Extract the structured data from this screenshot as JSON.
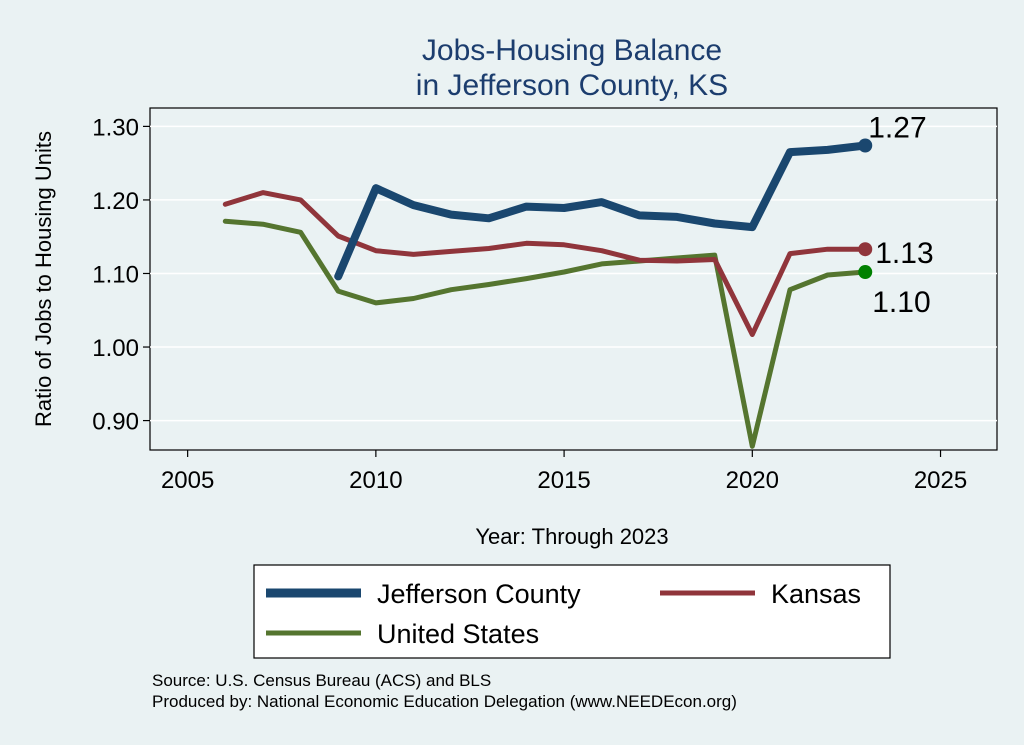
{
  "chart_data": {
    "type": "line",
    "title": [
      "Jobs-Housing Balance",
      "in Jefferson County, KS"
    ],
    "xlabel": "Year: Through 2023",
    "ylabel": "Ratio of Jobs to Housing Units",
    "xlim": [
      2004,
      2026.5
    ],
    "ylim": [
      0.86,
      1.325
    ],
    "xticks": [
      2005,
      2010,
      2015,
      2020,
      2025
    ],
    "yticks": [
      0.9,
      1.0,
      1.1,
      1.2,
      1.3
    ],
    "ytick_labels": [
      "0.90",
      "1.00",
      "1.10",
      "1.20",
      "1.30"
    ],
    "grid": true,
    "legend_position": "bottom",
    "series": [
      {
        "name": "Jefferson County",
        "color": "#1a476f",
        "end_marker_color": "#1a476f",
        "end_label": "1.27",
        "x": [
          2009,
          2010,
          2011,
          2012,
          2013,
          2014,
          2015,
          2016,
          2017,
          2018,
          2019,
          2020,
          2021,
          2022,
          2023
        ],
        "y": [
          1.096,
          1.216,
          1.193,
          1.18,
          1.175,
          1.191,
          1.189,
          1.197,
          1.179,
          1.177,
          1.168,
          1.163,
          1.265,
          1.268,
          1.274
        ]
      },
      {
        "name": "Kansas",
        "color": "#90353b",
        "end_marker_color": "#90353b",
        "end_label": "1.13",
        "x": [
          2006,
          2007,
          2008,
          2009,
          2010,
          2011,
          2012,
          2013,
          2014,
          2015,
          2016,
          2017,
          2018,
          2019,
          2020,
          2021,
          2022,
          2023
        ],
        "y": [
          1.194,
          1.21,
          1.2,
          1.151,
          1.131,
          1.126,
          1.13,
          1.134,
          1.141,
          1.139,
          1.131,
          1.118,
          1.117,
          1.119,
          1.017,
          1.127,
          1.133,
          1.133
        ]
      },
      {
        "name": "United States",
        "color": "#55752f",
        "end_marker_color": "#008000",
        "end_label": "1.10",
        "x": [
          2006,
          2007,
          2008,
          2009,
          2010,
          2011,
          2012,
          2013,
          2014,
          2015,
          2016,
          2017,
          2018,
          2019,
          2020,
          2021,
          2022,
          2023
        ],
        "y": [
          1.171,
          1.167,
          1.156,
          1.076,
          1.06,
          1.066,
          1.078,
          1.085,
          1.093,
          1.102,
          1.113,
          1.117,
          1.121,
          1.125,
          0.865,
          1.078,
          1.098,
          1.102
        ]
      }
    ],
    "source_lines": [
      "Source: U.S. Census Bureau (ACS) and BLS",
      "Produced by: National Economic Education Delegation (www.NEEDEcon.org)"
    ]
  }
}
